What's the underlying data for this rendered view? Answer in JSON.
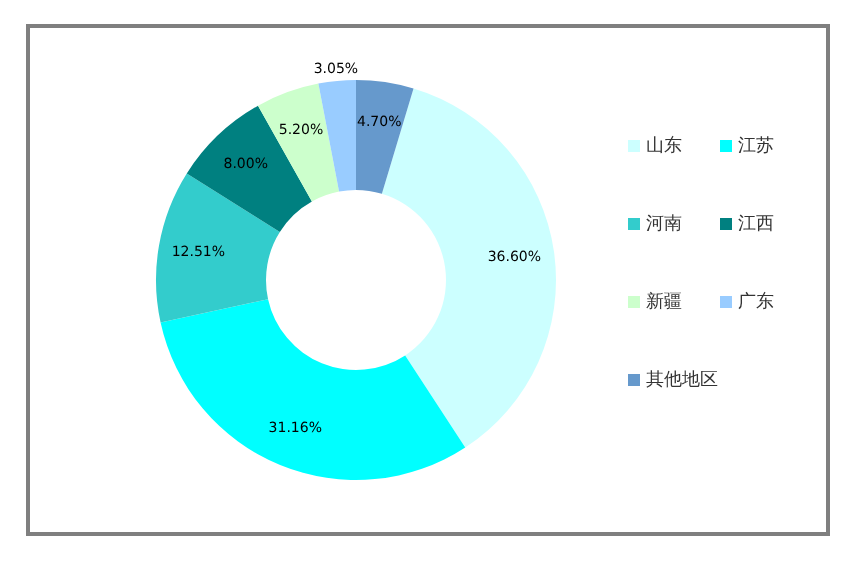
{
  "chart_data": {
    "type": "donut",
    "categories": [
      "山东",
      "江苏",
      "河南",
      "江西",
      "新疆",
      "广东",
      "其他地区"
    ],
    "values": [
      36.6,
      31.16,
      12.51,
      8.0,
      5.2,
      3.05,
      4.7
    ],
    "value_labels": [
      "36.60%",
      "31.16%",
      "12.51%",
      "8.00%",
      "5.20%",
      "3.05%",
      "4.70%"
    ],
    "colors": [
      "#ccffff",
      "#00ffff",
      "#33cccc",
      "#008080",
      "#ccffcc",
      "#99ccff",
      "#6699cc"
    ],
    "legend": "right"
  }
}
